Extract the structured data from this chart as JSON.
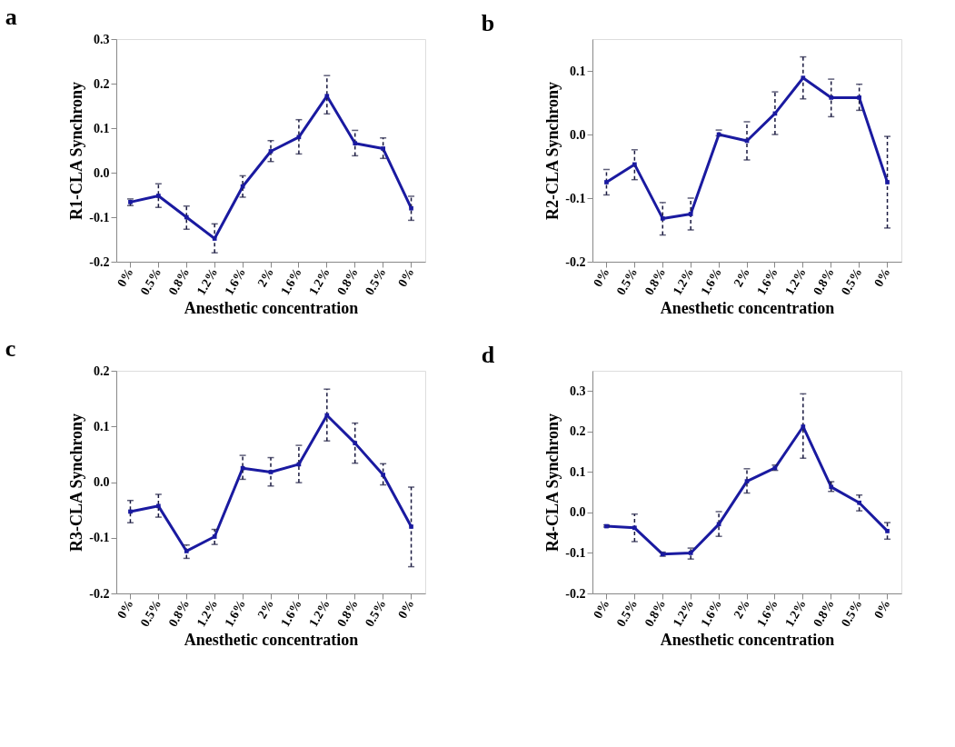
{
  "chart_data": [
    {
      "type": "line",
      "title": "a",
      "xlabel": "Anesthetic concentration",
      "ylabel": "R1-CLA Synchrony",
      "categories": [
        "0%",
        "0.5%",
        "0.8%",
        "1.2%",
        "1.6%",
        "2%",
        "1.6%",
        "1.2%",
        "0.8%",
        "0.5%",
        "0%"
      ],
      "ylim": [
        -0.2,
        0.3
      ],
      "yticks": [
        -0.2,
        -0.1,
        {
          "value": 0,
          "label": "0.0"
        },
        0.1,
        0.2,
        0.3
      ],
      "marker": "square",
      "grid": false,
      "series": [
        {
          "color": "#1a1aa0",
          "values": [
            -0.066,
            -0.052,
            -0.1,
            -0.148,
            -0.031,
            0.048,
            0.08,
            0.172,
            0.066,
            0.054,
            -0.08
          ],
          "errors": [
            [
              -0.074,
              -0.059
            ],
            [
              -0.078,
              -0.025
            ],
            [
              -0.127,
              -0.075
            ],
            [
              -0.18,
              -0.115
            ],
            [
              -0.055,
              -0.007
            ],
            [
              0.025,
              0.072
            ],
            [
              0.042,
              0.119
            ],
            [
              0.132,
              0.218
            ],
            [
              0.038,
              0.095
            ],
            [
              0.032,
              0.078
            ],
            [
              -0.107,
              -0.053
            ]
          ]
        }
      ]
    },
    {
      "type": "line",
      "title": "b",
      "xlabel": "Anesthetic concentration",
      "ylabel": "R2-CLA Synchrony",
      "categories": [
        "0%",
        "0.5%",
        "0.8%",
        "1.2%",
        "1.6%",
        "2%",
        "1.6%",
        "1.2%",
        "0.8%",
        "0.5%",
        "0%"
      ],
      "ylim": [
        -0.2,
        0.15
      ],
      "yticks": [
        -0.2,
        -0.1,
        {
          "value": 0,
          "label": "0.0"
        },
        0.1
      ],
      "marker": "square",
      "grid": false,
      "series": [
        {
          "color": "#1a1aa0",
          "values": [
            -0.075,
            -0.047,
            -0.132,
            -0.125,
            0.0,
            -0.01,
            0.033,
            0.089,
            0.058,
            0.058,
            -0.075
          ],
          "errors": [
            [
              -0.095,
              -0.055
            ],
            [
              -0.071,
              -0.024
            ],
            [
              -0.158,
              -0.107
            ],
            [
              -0.15,
              -0.1
            ],
            [
              -0.002,
              0.007
            ],
            [
              -0.04,
              0.02
            ],
            [
              0.0,
              0.067
            ],
            [
              0.056,
              0.122
            ],
            [
              0.028,
              0.087
            ],
            [
              0.038,
              0.079
            ],
            [
              -0.147,
              -0.003
            ]
          ]
        }
      ]
    },
    {
      "type": "line",
      "title": "c",
      "xlabel": "Anesthetic concentration",
      "ylabel": "R3-CLA Synchrony",
      "categories": [
        "0%",
        "0.5%",
        "0.8%",
        "1.2%",
        "1.6%",
        "2%",
        "1.6%",
        "1.2%",
        "0.8%",
        "0.5%",
        "0%"
      ],
      "ylim": [
        -0.2,
        0.2
      ],
      "yticks": [
        -0.2,
        -0.1,
        {
          "value": 0,
          "label": "0.0"
        },
        0.1,
        0.2
      ],
      "marker": "square",
      "grid": false,
      "series": [
        {
          "color": "#1a1aa0",
          "values": [
            -0.053,
            -0.043,
            -0.124,
            -0.098,
            0.025,
            0.018,
            0.032,
            0.12,
            0.07,
            0.013,
            -0.08
          ],
          "errors": [
            [
              -0.073,
              -0.033
            ],
            [
              -0.063,
              -0.022
            ],
            [
              -0.137,
              -0.113
            ],
            [
              -0.112,
              -0.085
            ],
            [
              0.005,
              0.048
            ],
            [
              -0.007,
              0.044
            ],
            [
              -0.001,
              0.066
            ],
            [
              0.074,
              0.167
            ],
            [
              0.034,
              0.106
            ],
            [
              -0.005,
              0.033
            ],
            [
              -0.152,
              -0.009
            ]
          ]
        }
      ]
    },
    {
      "type": "line",
      "title": "d",
      "xlabel": "Anesthetic concentration",
      "ylabel": "R4-CLA Synchrony",
      "categories": [
        "0%",
        "0.5%",
        "0.8%",
        "1.2%",
        "1.6%",
        "2%",
        "1.6%",
        "1.2%",
        "0.8%",
        "0.5%",
        "0%"
      ],
      "ylim": [
        -0.2,
        0.35
      ],
      "yticks": [
        -0.2,
        -0.1,
        {
          "value": 0,
          "label": "0.0"
        },
        0.1,
        0.2,
        0.3
      ],
      "marker": "square",
      "grid": false,
      "series": [
        {
          "color": "#1a1aa0",
          "values": [
            -0.034,
            -0.038,
            -0.103,
            -0.1,
            -0.029,
            0.077,
            0.11,
            0.212,
            0.063,
            0.024,
            -0.046
          ],
          "errors": [
            [
              -0.036,
              -0.031
            ],
            [
              -0.072,
              -0.004
            ],
            [
              -0.108,
              -0.098
            ],
            [
              -0.115,
              -0.088
            ],
            [
              -0.059,
              0.002
            ],
            [
              0.048,
              0.108
            ],
            [
              0.104,
              0.117
            ],
            [
              0.134,
              0.293
            ],
            [
              0.052,
              0.076
            ],
            [
              0.004,
              0.043
            ],
            [
              -0.066,
              -0.025
            ]
          ]
        }
      ]
    }
  ]
}
